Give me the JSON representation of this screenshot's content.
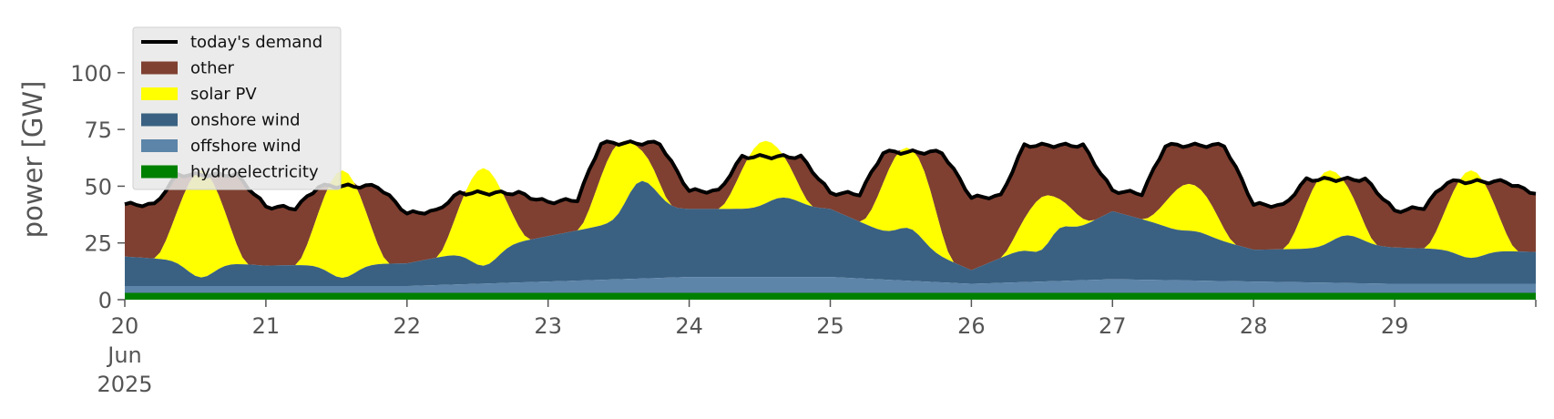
{
  "chart_data": {
    "type": "area",
    "ylabel": "power [GW]",
    "ylim": [
      0,
      120
    ],
    "yticks": [
      0,
      25,
      50,
      75,
      100
    ],
    "xlim": [
      20,
      30
    ],
    "xticks": [
      {
        "value": 20,
        "label": "20",
        "sub": [
          "Jun",
          "2025"
        ]
      },
      {
        "value": 21,
        "label": "21"
      },
      {
        "value": 22,
        "label": "22"
      },
      {
        "value": 23,
        "label": "23"
      },
      {
        "value": 24,
        "label": "24"
      },
      {
        "value": 25,
        "label": "25"
      },
      {
        "value": 26,
        "label": "26"
      },
      {
        "value": 27,
        "label": "27"
      },
      {
        "value": 28,
        "label": "28"
      },
      {
        "value": 29,
        "label": "29"
      }
    ],
    "grid": false,
    "legend_position": "top-left",
    "legend": [
      {
        "label": "today's demand",
        "kind": "line",
        "color": "#000000"
      },
      {
        "label": "other",
        "kind": "patch",
        "color": "#7f4031"
      },
      {
        "label": "solar PV",
        "kind": "patch",
        "color": "#ffff00"
      },
      {
        "label": "onshore wind",
        "kind": "patch",
        "color": "#3a6182"
      },
      {
        "label": "offshore wind",
        "kind": "patch",
        "color": "#5d85a9"
      },
      {
        "label": "hydroelectricity",
        "kind": "patch",
        "color": "#008000"
      }
    ],
    "daily": [
      {
        "day": 20,
        "hydro": 3,
        "offshore": 3,
        "onshore_start": 13,
        "onshore_min": 3,
        "solar_peak": 57,
        "demand_night": 42,
        "demand_day": 55
      },
      {
        "day": 21,
        "hydro": 3,
        "offshore": 3,
        "onshore_start": 9,
        "onshore_min": 3,
        "solar_peak": 57,
        "demand_night": 41,
        "demand_day": 50
      },
      {
        "day": 22,
        "hydro": 3,
        "offshore": 3,
        "onshore_start": 10,
        "onshore_min": 7,
        "solar_peak": 58,
        "demand_night": 38,
        "demand_day": 47
      },
      {
        "day": 23,
        "hydro": 3,
        "offshore": 5,
        "onshore_start": 20,
        "onshore_min": 20,
        "onshore_max": 43,
        "solar_peak": 70,
        "demand_night": 43,
        "demand_day": 69
      },
      {
        "day": 24,
        "hydro": 3,
        "offshore": 7,
        "onshore_start": 30,
        "onshore_min": 29,
        "onshore_max": 35,
        "solar_peak": 70,
        "demand_night": 48,
        "demand_day": 63
      },
      {
        "day": 25,
        "hydro": 3,
        "offshore": 7,
        "onshore_start": 30,
        "onshore_min": 24,
        "solar_peak": 67,
        "demand_night": 47,
        "demand_day": 65
      },
      {
        "day": 26,
        "hydro": 3,
        "offshore": 4,
        "onshore_start": 6,
        "onshore_min": 6,
        "onshore_max": 24,
        "solar_peak": 46,
        "demand_night": 45,
        "demand_day": 68
      },
      {
        "day": 27,
        "hydro": 3,
        "offshore": 6,
        "onshore_start": 30,
        "onshore_min": 22,
        "solar_peak": 51,
        "demand_night": 48,
        "demand_day": 68
      },
      {
        "day": 28,
        "hydro": 3,
        "offshore": 5,
        "onshore_start": 14,
        "onshore_min": 14,
        "onshore_max": 21,
        "solar_peak": 57,
        "demand_night": 42,
        "demand_day": 53
      },
      {
        "day": 29,
        "hydro": 3,
        "offshore": 4,
        "onshore_start": 16,
        "onshore_min": 11,
        "solar_peak": 57,
        "demand_night": 39,
        "demand_day": 52
      }
    ],
    "end": {
      "hydro": 3,
      "offshore": 4,
      "onshore": 14,
      "demand": 47
    }
  }
}
